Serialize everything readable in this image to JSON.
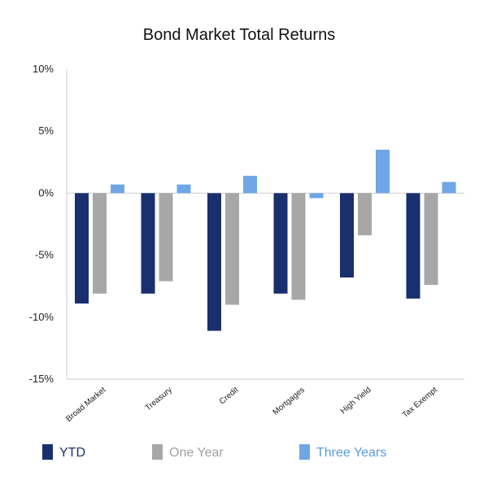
{
  "chart_data": {
    "type": "bar",
    "title": "Bond Market Total Returns",
    "xlabel": "",
    "ylabel": "",
    "categories": [
      "Broad Market",
      "Treasury",
      "Credit",
      "Mortgages",
      "High Yield",
      "Tax Exempt"
    ],
    "series": [
      {
        "name": "YTD",
        "color": "#1a2f6e",
        "values": [
          -8.9,
          -8.1,
          -11.1,
          -8.1,
          -6.8,
          -8.5
        ]
      },
      {
        "name": "One Year",
        "color": "#a7a7a7",
        "values": [
          -8.1,
          -7.1,
          -9.0,
          -8.6,
          -3.4,
          -7.4
        ]
      },
      {
        "name": "Three Years",
        "color": "#6ea6e6",
        "values": [
          0.7,
          0.7,
          1.4,
          -0.4,
          3.5,
          0.9
        ]
      }
    ],
    "y_ticks": [
      "10%",
      "5%",
      "0%",
      "-5%",
      "-10%",
      "-15%"
    ],
    "ylim": [
      -15,
      10
    ],
    "grid": false,
    "legend": "bottom"
  }
}
